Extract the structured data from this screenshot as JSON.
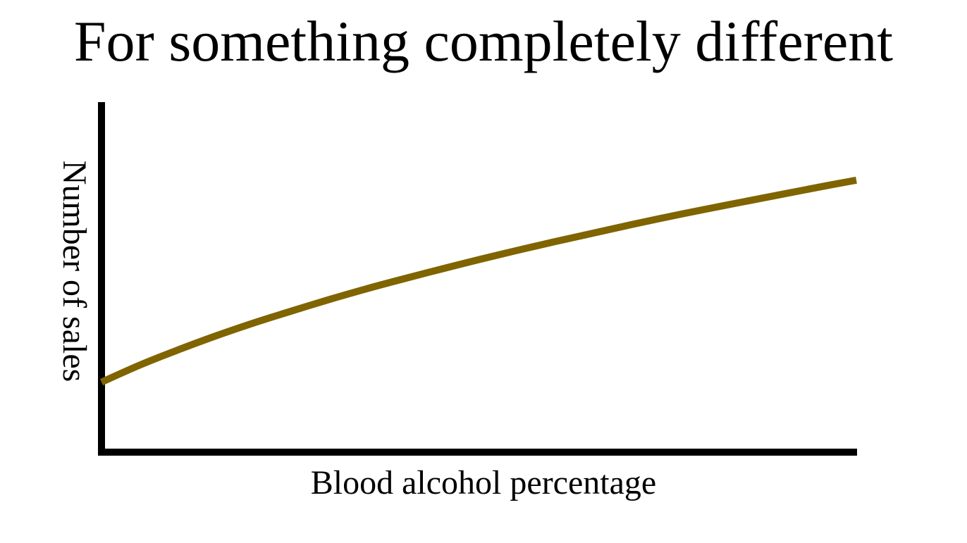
{
  "chart_data": {
    "type": "line",
    "title": "For something completely different",
    "xlabel": "Blood alcohol percentage",
    "ylabel": "Number of sales",
    "x": [
      0,
      0.05,
      0.1,
      0.15,
      0.2,
      0.25,
      0.3,
      0.35,
      0.4,
      0.45,
      0.5,
      0.55,
      0.6,
      0.65,
      0.7,
      0.75,
      0.8,
      0.85,
      0.9,
      0.95,
      1.0
    ],
    "series": [
      {
        "values": [
          0.2,
          0.248,
          0.291,
          0.331,
          0.368,
          0.402,
          0.435,
          0.466,
          0.495,
          0.523,
          0.55,
          0.576,
          0.601,
          0.625,
          0.649,
          0.672,
          0.694,
          0.715,
          0.736,
          0.757,
          0.777
        ]
      }
    ],
    "xlim": [
      0,
      1
    ],
    "ylim": [
      0,
      1
    ],
    "grid": false,
    "legend": "none",
    "ticks": "none",
    "line_color": "#7f6400",
    "axis_color": "#000000"
  }
}
